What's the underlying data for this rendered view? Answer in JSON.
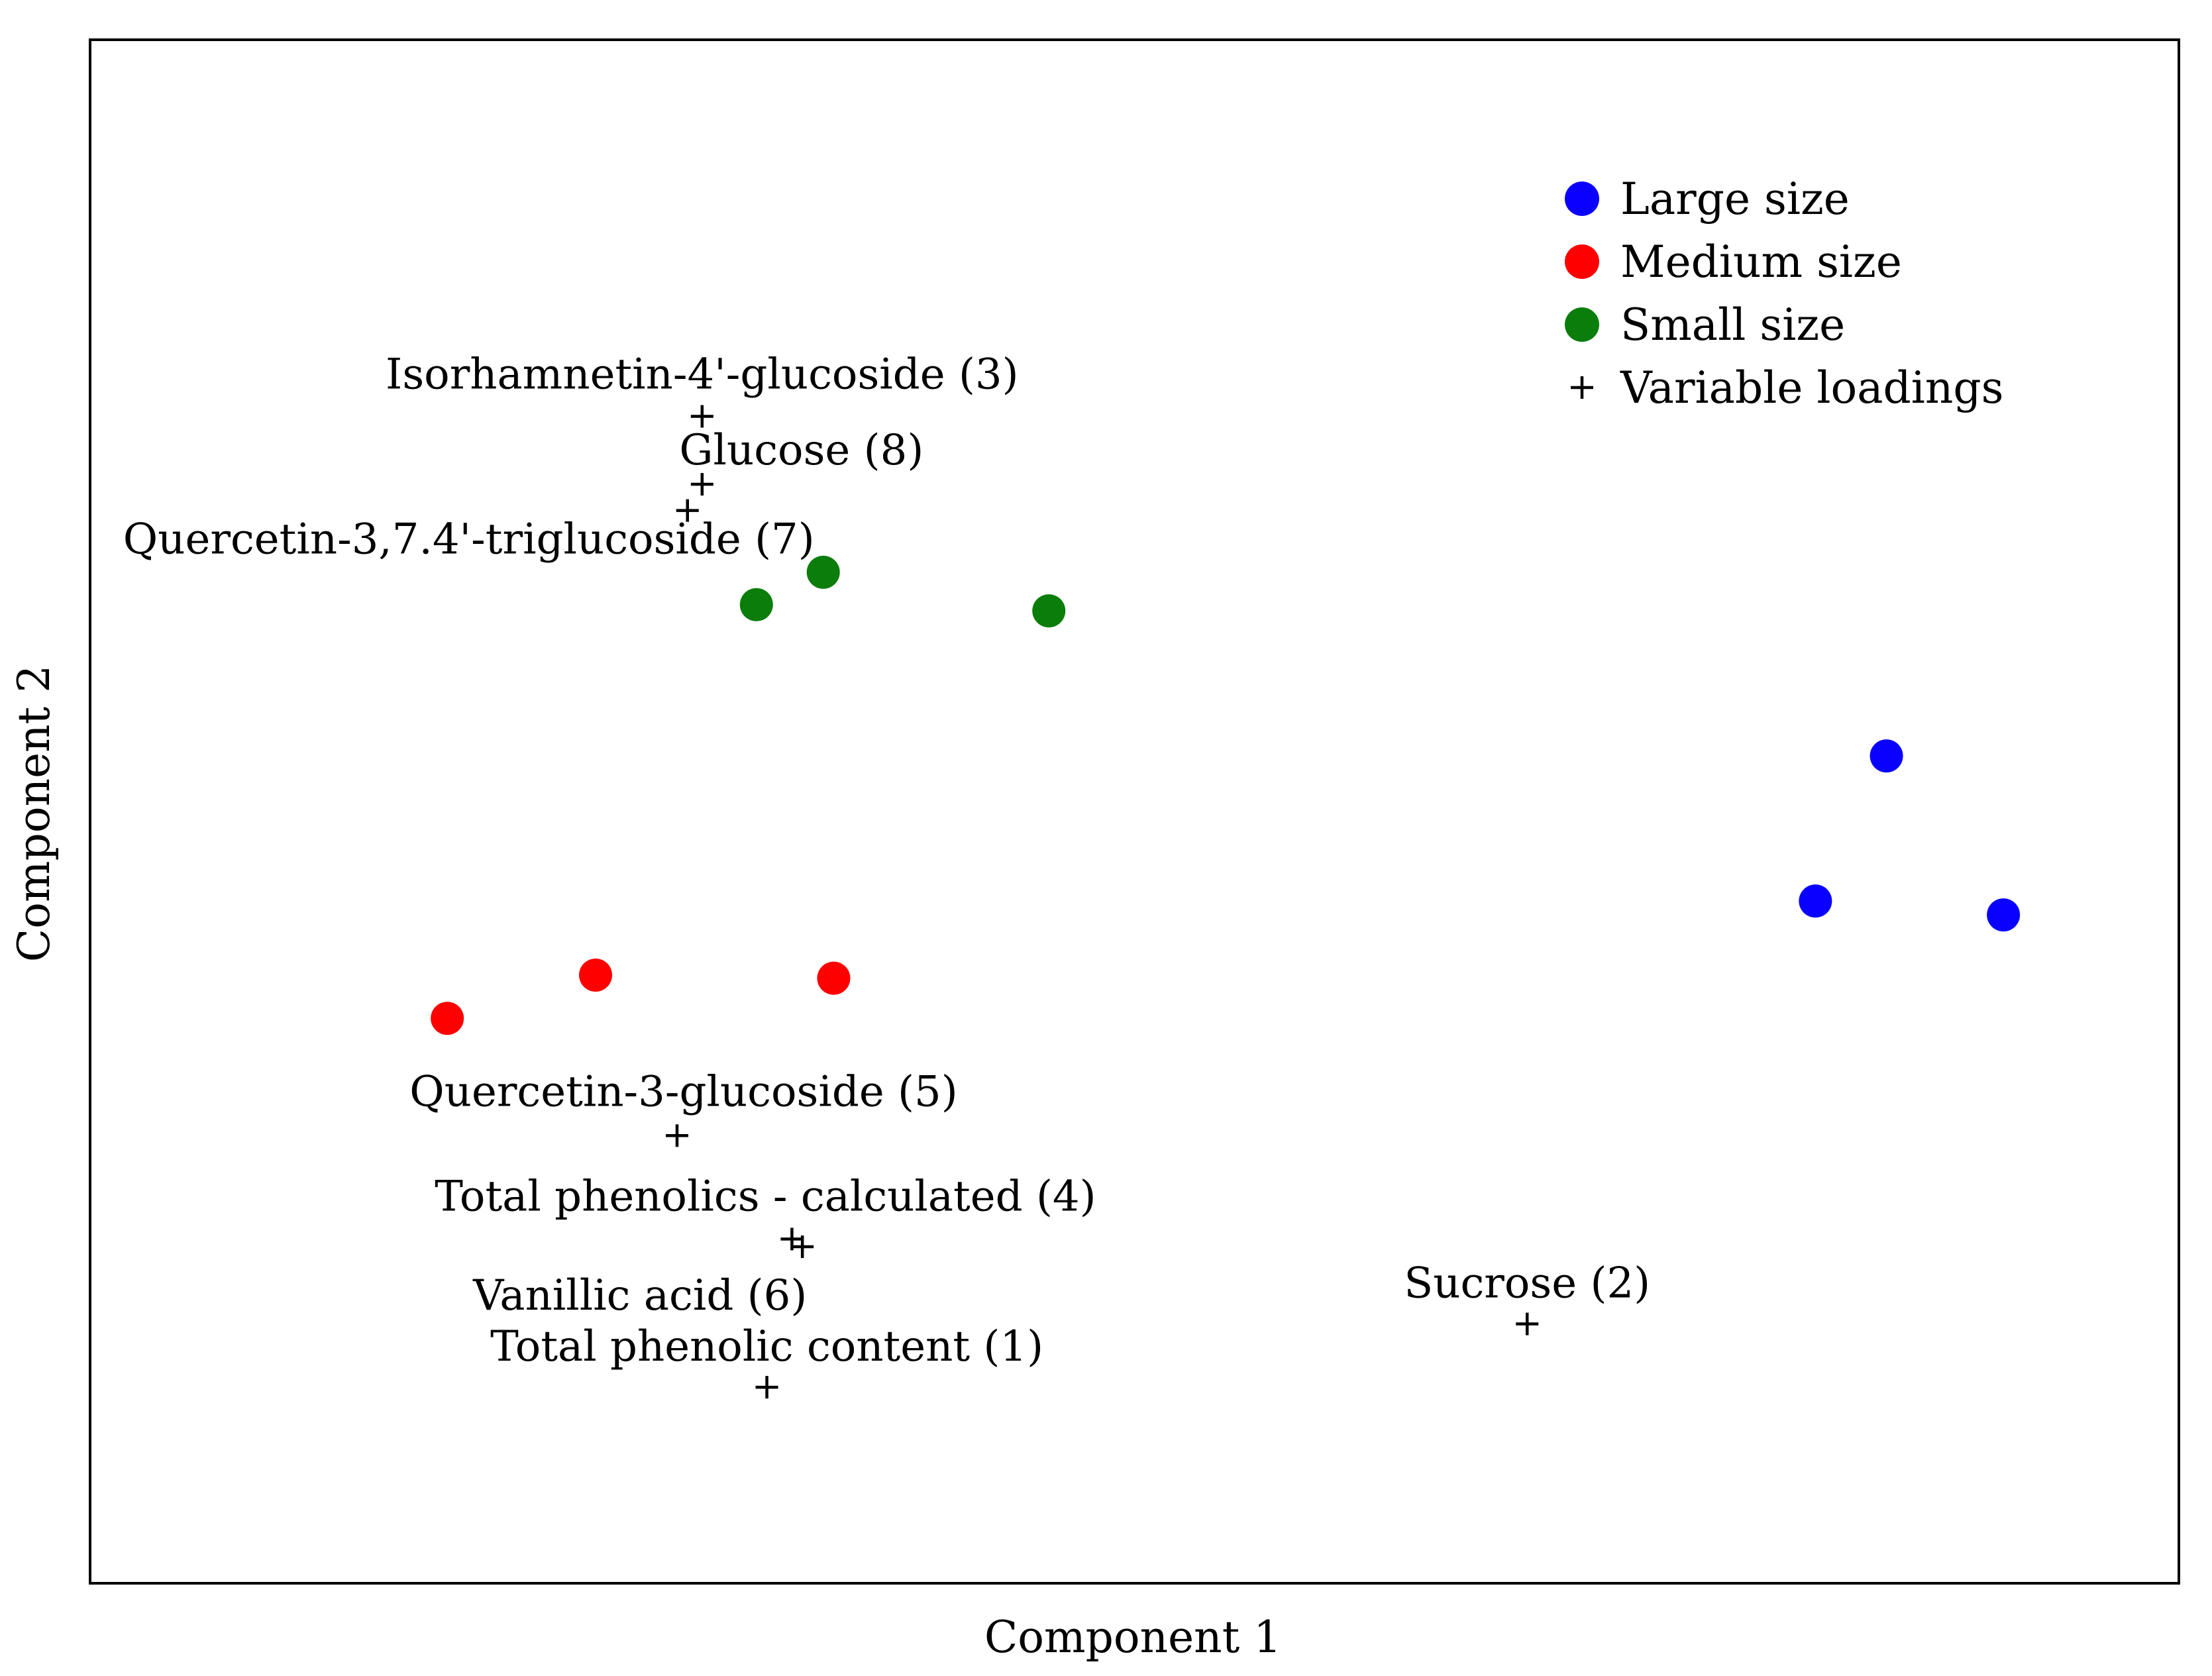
{
  "chart_data": {
    "type": "scatter",
    "title": "",
    "xlabel": "Component 1",
    "ylabel": "Component 2",
    "xlim": [
      0,
      100
    ],
    "ylim": [
      0,
      100
    ],
    "grid": false,
    "ticks": false,
    "legend_position": "top-right",
    "series": [
      {
        "name": "Large size",
        "marker": "circle",
        "color": "#0a00ff",
        "points": [
          {
            "x": 86.0,
            "y": 53.6
          },
          {
            "x": 82.6,
            "y": 44.2
          },
          {
            "x": 91.6,
            "y": 43.3
          }
        ]
      },
      {
        "name": "Medium size",
        "marker": "circle",
        "color": "#ff0000",
        "points": [
          {
            "x": 17.1,
            "y": 36.6
          },
          {
            "x": 24.2,
            "y": 39.4
          },
          {
            "x": 35.6,
            "y": 39.2
          }
        ]
      },
      {
        "name": "Small size",
        "marker": "circle",
        "color": "#0a7d0a",
        "points": [
          {
            "x": 31.9,
            "y": 63.4
          },
          {
            "x": 35.1,
            "y": 65.5
          },
          {
            "x": 45.9,
            "y": 63.0
          }
        ]
      }
    ],
    "loadings": {
      "name": "Variable loadings",
      "marker": "plus",
      "color": "#000000",
      "points": [
        {
          "label": "Isorhamnetin-4'-glucoside (3)",
          "x": 29.3,
          "y": 75.6
        },
        {
          "label": "Glucose (8)",
          "x": 29.3,
          "y": 71.2
        },
        {
          "label": "Quercetin-3,7.4'-triglucoside (7)",
          "x": 28.6,
          "y": 69.5
        },
        {
          "label": "Quercetin-3-glucoside (5)",
          "x": 28.1,
          "y": 29.0
        },
        {
          "label": "Total phenolics - calculated (4)",
          "x": 33.6,
          "y": 22.3
        },
        {
          "label": "Vanillic acid (6)",
          "x": 34.1,
          "y": 21.8
        },
        {
          "label": "Total phenolic content (1)",
          "x": 32.4,
          "y": 12.7
        },
        {
          "label": "Sucrose (2)",
          "x": 68.8,
          "y": 16.8
        }
      ]
    }
  }
}
